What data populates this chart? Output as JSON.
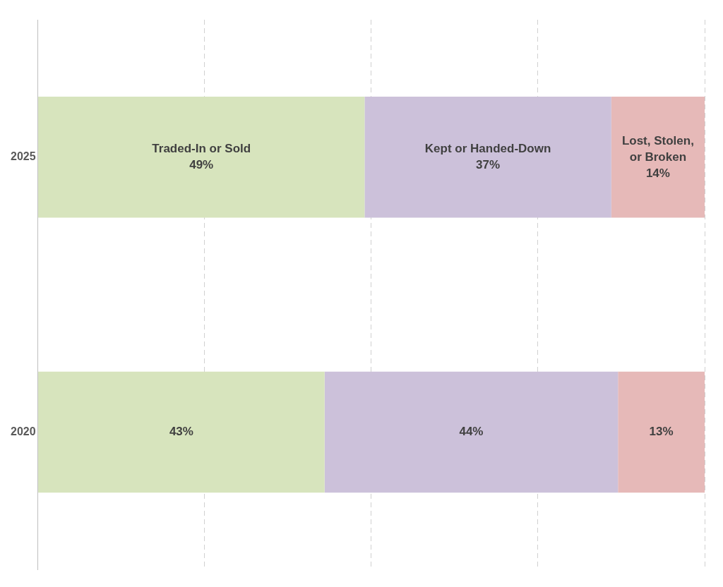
{
  "chart_data": {
    "type": "bar",
    "orientation": "horizontal",
    "stacked": true,
    "categories": [
      "2025",
      "2020"
    ],
    "series": [
      {
        "name": "Traded-In or Sold",
        "color": "#d7e4bd",
        "values": [
          49,
          43
        ],
        "value_labels": [
          "49%",
          "43%"
        ]
      },
      {
        "name": "Kept or Handed-Down",
        "color": "#ccc1da",
        "values": [
          37,
          44
        ],
        "value_labels": [
          "37%",
          "44%"
        ]
      },
      {
        "name": "Lost, Stolen, or Broken",
        "color": "#e6b9b8",
        "values": [
          14,
          13
        ],
        "value_labels": [
          "14%",
          "13%"
        ]
      }
    ],
    "tick_labels": "y",
    "grid": "x",
    "legend": false
  }
}
